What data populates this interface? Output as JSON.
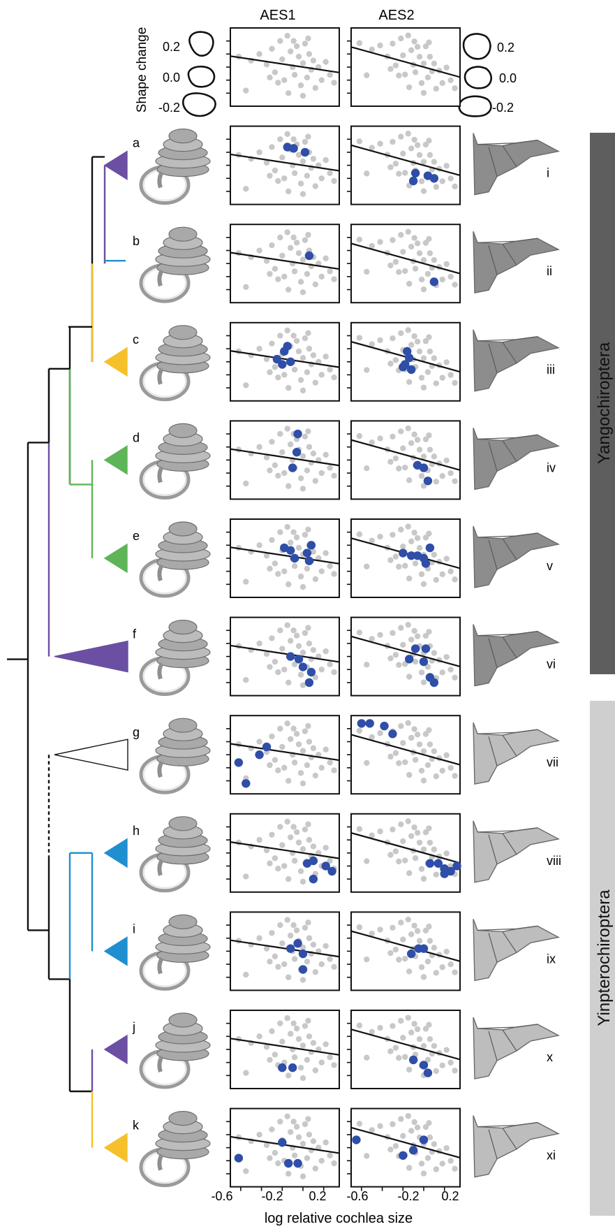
{
  "columns": [
    "AES1",
    "AES2"
  ],
  "shape_change": {
    "label": "Shape change",
    "ticks_left": [
      "0.2",
      "0.0",
      "-0.2"
    ],
    "ticks_right": [
      "0.2",
      "0.0",
      "-0.2"
    ]
  },
  "x_axis_label": "log relative cochlea size",
  "x_tick_labels": [
    "-0.6",
    "-0.2",
    "0.2"
  ],
  "clade_groups": [
    {
      "label": "Yangochiroptera",
      "color": "#5e5e5e",
      "text_color": "#111111"
    },
    {
      "label": "Yinpterochiroptera",
      "color": "#cfcfcf",
      "text_color": "#111111"
    }
  ],
  "colors": {
    "purple": "#6a4fa3",
    "blue": "#1f8fcf",
    "orange": "#f5c02a",
    "green": "#5db557",
    "highlight": "#2f4ea8",
    "background_points": "#c8c8c8",
    "regression": "#111111",
    "wing_dark": "#8d8d8d",
    "wing_light": "#bdbdbd"
  },
  "rows": [
    {
      "cochlea_label": "a",
      "wing_label": "i",
      "clade_color": "purple"
    },
    {
      "cochlea_label": "b",
      "wing_label": "ii",
      "clade_color": "blue"
    },
    {
      "cochlea_label": "c",
      "wing_label": "iii",
      "clade_color": "orange"
    },
    {
      "cochlea_label": "d",
      "wing_label": "iv",
      "clade_color": "green"
    },
    {
      "cochlea_label": "e",
      "wing_label": "v",
      "clade_color": "green"
    },
    {
      "cochlea_label": "f",
      "wing_label": "vi",
      "clade_color": "purple"
    },
    {
      "cochlea_label": "g",
      "wing_label": "vii",
      "clade_color": "white"
    },
    {
      "cochlea_label": "h",
      "wing_label": "viii",
      "clade_color": "blue"
    },
    {
      "cochlea_label": "i",
      "wing_label": "ix",
      "clade_color": "blue"
    },
    {
      "cochlea_label": "j",
      "wing_label": "x",
      "clade_color": "purple"
    },
    {
      "cochlea_label": "k",
      "wing_label": "xi",
      "clade_color": "orange"
    }
  ],
  "chart_data": {
    "type": "scatter",
    "xlabel": "log relative cochlea size",
    "xlim": [
      -0.7,
      0.35
    ],
    "ylim": [
      -0.3,
      0.3
    ],
    "background_points": [
      [
        -0.62,
        0.08
      ],
      [
        -0.55,
        -0.18
      ],
      [
        -0.5,
        0.05
      ],
      [
        -0.42,
        0.1
      ],
      [
        -0.35,
        0.02
      ],
      [
        -0.3,
        0.14
      ],
      [
        -0.27,
        -0.04
      ],
      [
        -0.22,
        0.2
      ],
      [
        -0.2,
        0.06
      ],
      [
        -0.18,
        -0.1
      ],
      [
        -0.15,
        0.24
      ],
      [
        -0.12,
        0.12
      ],
      [
        -0.1,
        0.0
      ],
      [
        -0.08,
        -0.06
      ],
      [
        -0.06,
        0.16
      ],
      [
        -0.04,
        0.08
      ],
      [
        -0.02,
        -0.14
      ],
      [
        0.0,
        0.03
      ],
      [
        0.02,
        0.18
      ],
      [
        0.04,
        -0.08
      ],
      [
        0.06,
        0.1
      ],
      [
        0.08,
        -0.02
      ],
      [
        0.1,
        0.05
      ],
      [
        0.12,
        -0.16
      ],
      [
        0.15,
        0.0
      ],
      [
        0.18,
        -0.1
      ],
      [
        0.22,
        0.04
      ],
      [
        0.26,
        -0.06
      ],
      [
        -0.24,
        -0.12
      ],
      [
        -0.14,
        -0.2
      ],
      [
        0.0,
        -0.22
      ],
      [
        0.05,
        0.22
      ],
      [
        -0.09,
        0.2
      ],
      [
        -0.32,
        -0.08
      ],
      [
        0.3,
        -0.12
      ]
    ],
    "series": [
      {
        "column": "AES1",
        "slope": -0.12,
        "intercept": 0.0
      },
      {
        "column": "AES2",
        "slope": -0.22,
        "intercept": 0.0
      }
    ],
    "highlights": [
      {
        "AES1": [
          [
            -0.15,
            0.14
          ],
          [
            -0.09,
            0.13
          ],
          [
            0.02,
            0.1
          ]
        ],
        "AES2": [
          [
            -0.08,
            -0.06
          ],
          [
            -0.1,
            -0.12
          ],
          [
            0.04,
            -0.08
          ],
          [
            0.1,
            -0.1
          ]
        ]
      },
      {
        "AES1": [
          [
            0.06,
            0.06
          ]
        ],
        "AES2": [
          [
            0.1,
            -0.14
          ]
        ]
      },
      {
        "AES1": [
          [
            -0.25,
            0.02
          ],
          [
            -0.18,
            0.08
          ],
          [
            -0.15,
            0.12
          ],
          [
            -0.12,
            0.0
          ],
          [
            -0.2,
            -0.02
          ]
        ],
        "AES2": [
          [
            -0.18,
            -0.02
          ],
          [
            -0.14,
            0.03
          ],
          [
            -0.16,
            0.08
          ],
          [
            -0.12,
            -0.06
          ],
          [
            -0.2,
            -0.04
          ]
        ]
      },
      {
        "AES1": [
          [
            -0.05,
            0.2
          ],
          [
            -0.06,
            0.06
          ],
          [
            -0.1,
            -0.06
          ]
        ],
        "AES2": [
          [
            -0.06,
            -0.04
          ],
          [
            0.0,
            -0.06
          ],
          [
            0.04,
            -0.16
          ]
        ]
      },
      {
        "AES1": [
          [
            -0.18,
            0.08
          ],
          [
            -0.12,
            0.06
          ],
          [
            -0.08,
            0.0
          ],
          [
            0.04,
            0.04
          ],
          [
            0.08,
            0.1
          ],
          [
            0.06,
            -0.02
          ]
        ],
        "AES2": [
          [
            -0.2,
            0.04
          ],
          [
            -0.12,
            0.02
          ],
          [
            -0.06,
            0.02
          ],
          [
            0.0,
            0.0
          ],
          [
            0.06,
            0.08
          ],
          [
            0.02,
            -0.04
          ]
        ]
      },
      {
        "AES1": [
          [
            -0.12,
            0.0
          ],
          [
            -0.04,
            -0.02
          ],
          [
            0.0,
            -0.08
          ],
          [
            0.08,
            -0.12
          ],
          [
            0.06,
            -0.2
          ]
        ],
        "AES2": [
          [
            -0.08,
            0.06
          ],
          [
            0.02,
            0.06
          ],
          [
            -0.14,
            -0.02
          ],
          [
            0.0,
            -0.04
          ],
          [
            0.06,
            -0.16
          ],
          [
            0.1,
            -0.2
          ]
        ]
      },
      {
        "AES1": [
          [
            -0.62,
            -0.06
          ],
          [
            -0.55,
            -0.22
          ],
          [
            -0.42,
            0.0
          ],
          [
            -0.35,
            0.06
          ]
        ],
        "AES2": [
          [
            -0.6,
            0.24
          ],
          [
            -0.52,
            0.24
          ],
          [
            -0.38,
            0.22
          ],
          [
            -0.3,
            0.16
          ]
        ]
      },
      {
        "AES1": [
          [
            0.04,
            -0.08
          ],
          [
            0.1,
            -0.06
          ],
          [
            0.22,
            -0.1
          ],
          [
            0.28,
            -0.14
          ],
          [
            0.1,
            -0.2
          ]
        ],
        "AES2": [
          [
            0.06,
            -0.08
          ],
          [
            0.14,
            -0.08
          ],
          [
            0.2,
            -0.12
          ],
          [
            0.26,
            -0.14
          ],
          [
            0.32,
            -0.1
          ],
          [
            0.2,
            -0.16
          ]
        ]
      },
      {
        "AES1": [
          [
            -0.12,
            0.02
          ],
          [
            -0.05,
            0.06
          ],
          [
            0.0,
            -0.02
          ],
          [
            0.0,
            -0.14
          ]
        ],
        "AES2": [
          [
            -0.12,
            -0.02
          ],
          [
            -0.05,
            0.02
          ],
          [
            0.0,
            0.02
          ]
        ]
      },
      {
        "AES1": [
          [
            -0.2,
            -0.14
          ],
          [
            -0.1,
            -0.14
          ]
        ],
        "AES2": [
          [
            -0.1,
            -0.08
          ],
          [
            0.0,
            -0.12
          ],
          [
            0.04,
            -0.18
          ]
        ]
      },
      {
        "AES1": [
          [
            -0.62,
            -0.08
          ],
          [
            -0.2,
            0.04
          ],
          [
            -0.14,
            -0.12
          ],
          [
            -0.05,
            -0.12
          ]
        ],
        "AES2": [
          [
            -0.65,
            0.06
          ],
          [
            -0.2,
            -0.06
          ],
          [
            -0.1,
            -0.02
          ],
          [
            0.0,
            0.06
          ]
        ]
      }
    ]
  }
}
